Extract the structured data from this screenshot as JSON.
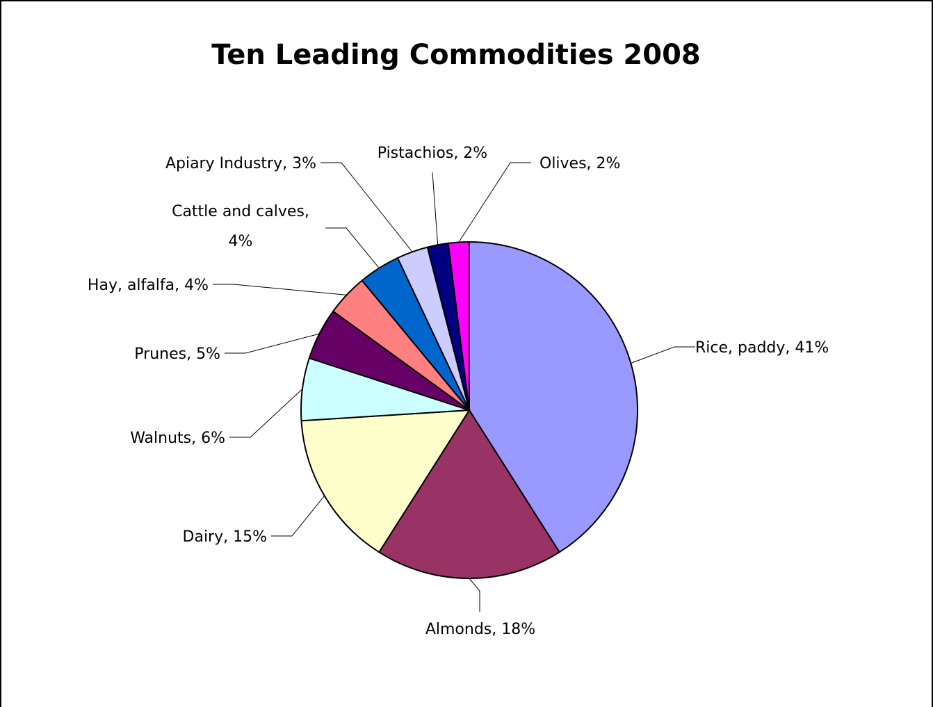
{
  "chart_data": {
    "type": "pie",
    "title": "Ten Leading Commodities 2008",
    "slices": [
      {
        "name": "Rice, paddy",
        "value": 41,
        "label": "Rice, paddy, 41%",
        "color": "#9999ff"
      },
      {
        "name": "Almonds",
        "value": 18,
        "label": "Almonds, 18%",
        "color": "#993366"
      },
      {
        "name": "Dairy",
        "value": 15,
        "label": "Dairy, 15%",
        "color": "#ffffcc"
      },
      {
        "name": "Walnuts",
        "value": 6,
        "label": "Walnuts, 6%",
        "color": "#ccffff"
      },
      {
        "name": "Prunes",
        "value": 5,
        "label": "Prunes, 5%",
        "color": "#660066"
      },
      {
        "name": "Hay, alfalfa",
        "value": 4,
        "label": "Hay, alfalfa, 4%",
        "color": "#ff8080"
      },
      {
        "name": "Cattle and calves",
        "value": 4,
        "label_lines": [
          "Cattle and calves,",
          "4%"
        ],
        "color": "#0066cc"
      },
      {
        "name": "Apiary Industry",
        "value": 3,
        "label": "Apiary Industry, 3%",
        "color": "#ccccff"
      },
      {
        "name": "Pistachios",
        "value": 2,
        "label": "Pistachios, 2%",
        "color": "#000080"
      },
      {
        "name": "Olives",
        "value": 2,
        "label": "Olives, 2%",
        "color": "#ff00ff"
      }
    ],
    "start": "12 o'clock",
    "direction": "clockwise",
    "legend": "none",
    "data_labels": "outside with leader lines"
  }
}
